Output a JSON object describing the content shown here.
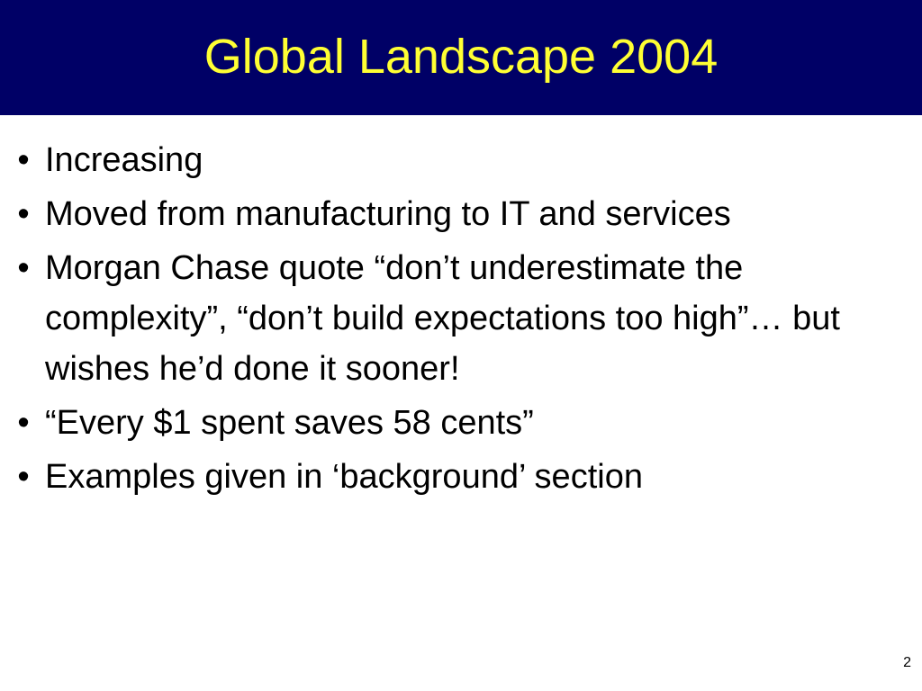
{
  "slide": {
    "title": "Global Landscape 2004",
    "bullet_symbol": "•",
    "bullets": [
      "Increasing",
      "Moved from manufacturing to IT and services",
      "Morgan Chase quote “don’t underestimate the complexity”, “don’t build expectations too high”… but wishes he’d done it sooner!",
      "“Every $1 spent saves 58 cents”",
      "Examples given in ‘background’ section"
    ],
    "page_number": "2"
  },
  "colors": {
    "title_bar": "#000066",
    "title_text": "#ffff33",
    "body_text": "#000000",
    "background": "#ffffff"
  }
}
